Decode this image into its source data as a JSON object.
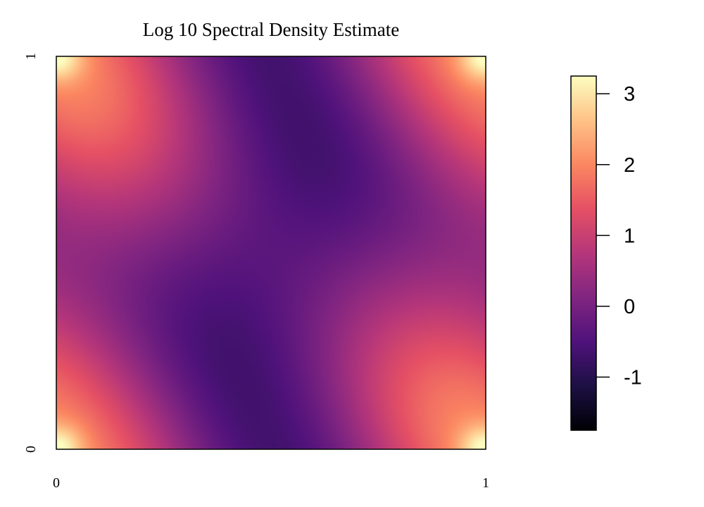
{
  "chart_data": {
    "type": "heatmap",
    "title": "Log 10 Spectral Density Estimate",
    "xlabel": "",
    "ylabel": "",
    "xlim": [
      0,
      1
    ],
    "ylim": [
      0,
      1
    ],
    "x_ticks": [
      "0",
      "1"
    ],
    "y_ticks": [
      "0",
      "1"
    ],
    "colorbar": {
      "range": [
        -1.75,
        3.25
      ],
      "ticks": [
        {
          "value": 3,
          "label": "3"
        },
        {
          "value": 2,
          "label": "2"
        },
        {
          "value": 1,
          "label": "1"
        },
        {
          "value": 0,
          "label": "0"
        },
        {
          "value": -1,
          "label": "-1"
        }
      ],
      "colormap": [
        "#000004",
        "#1c1044",
        "#4f127b",
        "#812581",
        "#b5367a",
        "#e55064",
        "#fb8761",
        "#fec287",
        "#fcfdbf"
      ]
    },
    "features": [
      {
        "description": "peaks at corners",
        "x": 0,
        "y": 0,
        "value": 3.25
      },
      {
        "x": 1,
        "y": 0,
        "value": 3.25
      },
      {
        "x": 0,
        "y": 1,
        "value": 3.25
      },
      {
        "x": 1,
        "y": 1,
        "value": 3.25
      },
      {
        "x": 0.5,
        "y": 0,
        "value": -1.75
      },
      {
        "x": 0.5,
        "y": 1,
        "value": -1.75
      },
      {
        "x": 0.5,
        "y": 0.5,
        "value": -0.8
      }
    ],
    "grid": false,
    "legend": "colorbar-right"
  }
}
